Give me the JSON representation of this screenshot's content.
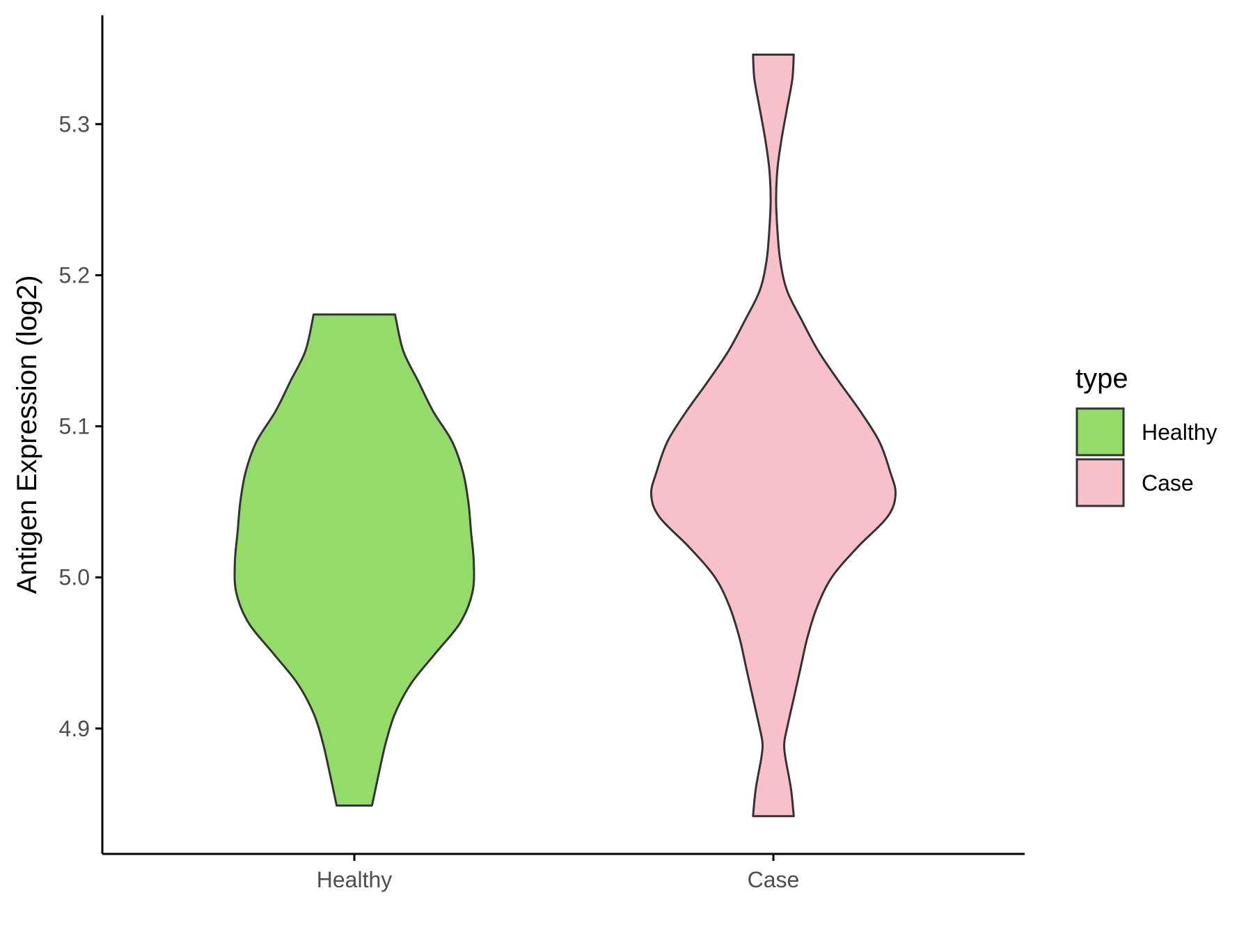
{
  "chart_data": {
    "type": "violin",
    "title": "",
    "xlabel": "",
    "ylabel": "Antigen Expression (log2)",
    "categories": [
      "Healthy",
      "Case"
    ],
    "y_ticks": [
      4.9,
      5.0,
      5.1,
      5.2,
      5.3
    ],
    "y_tick_labels": [
      "4.9",
      "5.0",
      "5.1",
      "5.2",
      "5.3"
    ],
    "ylim": [
      4.817,
      5.372
    ],
    "grid": false,
    "legend": {
      "title": "type",
      "position": "right",
      "entries": [
        {
          "label": "Healthy",
          "color": "#93dc6a"
        },
        {
          "label": "Case",
          "color": "#f7c0cb"
        }
      ]
    },
    "series": [
      {
        "name": "Healthy",
        "color": "#93dc6a",
        "y_min": 4.849,
        "y_max": 5.174,
        "profile": [
          [
            4.849,
            0.13
          ],
          [
            4.87,
            0.18
          ],
          [
            4.89,
            0.23
          ],
          [
            4.91,
            0.3
          ],
          [
            4.93,
            0.42
          ],
          [
            4.95,
            0.6
          ],
          [
            4.97,
            0.78
          ],
          [
            4.99,
            0.87
          ],
          [
            5.01,
            0.88
          ],
          [
            5.03,
            0.86
          ],
          [
            5.05,
            0.84
          ],
          [
            5.07,
            0.8
          ],
          [
            5.09,
            0.72
          ],
          [
            5.11,
            0.58
          ],
          [
            5.13,
            0.47
          ],
          [
            5.15,
            0.36
          ],
          [
            5.174,
            0.3
          ]
        ]
      },
      {
        "name": "Case",
        "color": "#f7c0cb",
        "y_min": 4.842,
        "y_max": 5.346,
        "profile": [
          [
            4.842,
            0.15
          ],
          [
            4.86,
            0.13
          ],
          [
            4.88,
            0.09
          ],
          [
            4.89,
            0.08
          ],
          [
            4.9,
            0.1
          ],
          [
            4.92,
            0.15
          ],
          [
            4.94,
            0.2
          ],
          [
            4.96,
            0.25
          ],
          [
            4.98,
            0.32
          ],
          [
            5.0,
            0.43
          ],
          [
            5.02,
            0.62
          ],
          [
            5.04,
            0.84
          ],
          [
            5.055,
            0.9
          ],
          [
            5.07,
            0.86
          ],
          [
            5.09,
            0.78
          ],
          [
            5.11,
            0.64
          ],
          [
            5.13,
            0.48
          ],
          [
            5.15,
            0.33
          ],
          [
            5.17,
            0.21
          ],
          [
            5.19,
            0.1
          ],
          [
            5.21,
            0.05
          ],
          [
            5.23,
            0.03
          ],
          [
            5.25,
            0.02
          ],
          [
            5.27,
            0.03
          ],
          [
            5.29,
            0.06
          ],
          [
            5.31,
            0.1
          ],
          [
            5.33,
            0.14
          ],
          [
            5.346,
            0.15
          ]
        ]
      }
    ]
  }
}
